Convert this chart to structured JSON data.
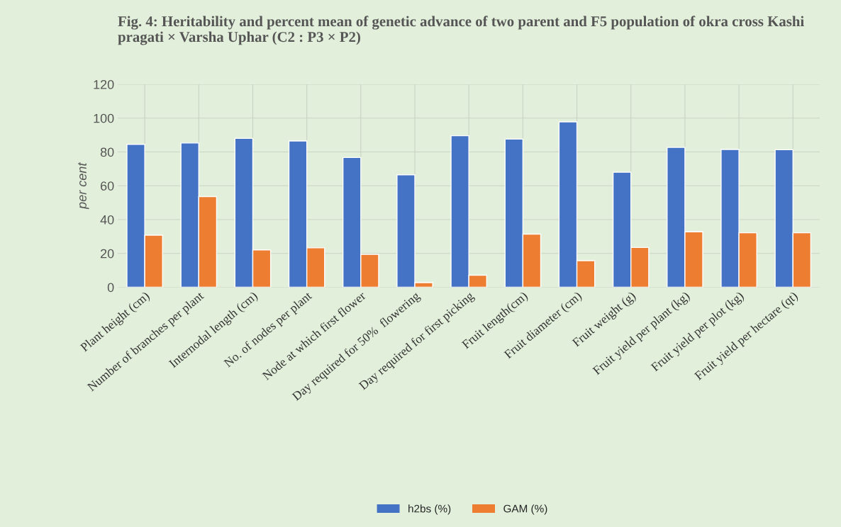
{
  "chart_data": {
    "type": "bar",
    "title": "Fig. 4: Heritability and percent mean of genetic advance of two parent and F5 population of okra cross Kashi pragati × Varsha Uphar (C2 : P3 × P2)",
    "ylabel": "per cent",
    "categories": [
      "Plant height (cm)",
      "Number of branches per plant",
      "Internodal length (cm)",
      "No. of nodes per plant",
      "Node at which first flower",
      "Day required for 50%  flowering",
      "Day required for first picking",
      "Fruit length(cm)",
      "Fruit diameter (cm)",
      "Fruit weight (g)",
      "Fruit yield per plant (kg)",
      "Fruit yield per plot (kg)",
      "Fruit yield per hectare (qt)"
    ],
    "series": [
      {
        "name": "h2bs (%)",
        "color": "#4472c4",
        "values": [
          84.5,
          85.3,
          88,
          86.5,
          76.7,
          66.5,
          89.6,
          87.6,
          97.8,
          68,
          82.7,
          81.5,
          81.3
        ]
      },
      {
        "name": "GAM (%)",
        "color": "#ed7d31",
        "values": [
          30.8,
          53.6,
          22.1,
          23.3,
          19.4,
          2.7,
          7.1,
          31.4,
          15.7,
          23.5,
          32.8,
          32.2,
          32.2
        ]
      }
    ],
    "ylim": [
      0,
      120
    ],
    "yticks": [
      0,
      20,
      40,
      60,
      80,
      100,
      120
    ],
    "grid": true,
    "legend": "bottom"
  }
}
